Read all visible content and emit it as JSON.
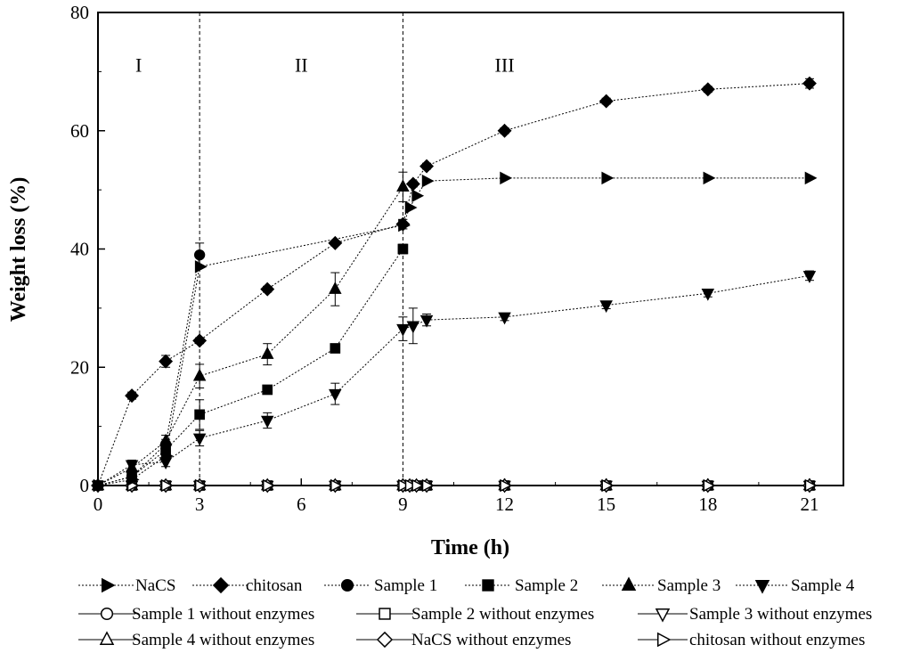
{
  "chart_data": {
    "type": "line",
    "title": "",
    "xlabel": "Time (h)",
    "ylabel": "Weight loss (%)",
    "xlim": [
      0,
      22
    ],
    "ylim": [
      0,
      80
    ],
    "xticks": [
      0,
      3,
      6,
      9,
      12,
      15,
      18,
      21
    ],
    "yticks": [
      0,
      20,
      40,
      60,
      80
    ],
    "grid": false,
    "legend_position": "bottom",
    "vlines": [
      3,
      9
    ],
    "regions": [
      {
        "label": "I",
        "x": 1.2,
        "y": 70
      },
      {
        "label": "II",
        "x": 6,
        "y": 70
      },
      {
        "label": "III",
        "x": 12,
        "y": 70
      }
    ],
    "series": [
      {
        "name": "NaCS",
        "marker": "triangle-right",
        "filled": true,
        "line": "dotted",
        "x": [
          0,
          1,
          2,
          3,
          9,
          9.2,
          9.4,
          9.7,
          12,
          15,
          18,
          21
        ],
        "y": [
          0,
          1.0,
          5.0,
          37.0,
          44.0,
          47.0,
          49.0,
          51.5,
          52.0,
          52.0,
          52.0,
          52.0
        ],
        "err": [
          0,
          0,
          0,
          0,
          0,
          0,
          0,
          0,
          0,
          0,
          0,
          0
        ]
      },
      {
        "name": "chitosan",
        "marker": "diamond",
        "filled": true,
        "line": "dotted",
        "x": [
          0,
          1,
          2,
          3,
          5,
          7,
          9,
          9.3,
          9.7,
          12,
          15,
          18,
          21
        ],
        "y": [
          0,
          15.2,
          21.0,
          24.5,
          33.2,
          41.0,
          44.2,
          51.0,
          54.0,
          60.0,
          65.0,
          67.0,
          68.0
        ],
        "err": [
          0,
          0.6,
          1.0,
          0.5,
          0.5,
          0.4,
          0.8,
          0.5,
          0.5,
          0.5,
          0.5,
          0.5,
          0.8
        ]
      },
      {
        "name": "Sample 1",
        "marker": "circle",
        "filled": true,
        "line": "dotted",
        "x": [
          0,
          1,
          2,
          3
        ],
        "y": [
          0,
          1.5,
          7.0,
          39.0
        ],
        "err": [
          0,
          0.6,
          0.8,
          2.0
        ]
      },
      {
        "name": "Sample 2",
        "marker": "square",
        "filled": true,
        "line": "dotted",
        "x": [
          0,
          1,
          2,
          3,
          5,
          7,
          9
        ],
        "y": [
          0,
          1.5,
          6.0,
          12.0,
          16.2,
          23.2,
          40.0
        ],
        "err": [
          0,
          0.5,
          1.0,
          2.5,
          0.6,
          0.5,
          0.8
        ]
      },
      {
        "name": "Sample 3",
        "marker": "triangle-up",
        "filled": true,
        "line": "dotted",
        "x": [
          0,
          1,
          2,
          3,
          5,
          7,
          9
        ],
        "y": [
          0,
          3.0,
          7.5,
          18.5,
          22.2,
          33.2,
          50.5
        ],
        "err": [
          0,
          1.0,
          1.0,
          2.0,
          1.8,
          2.8,
          2.5
        ]
      },
      {
        "name": "Sample 4",
        "marker": "triangle-down",
        "filled": true,
        "line": "dotted",
        "x": [
          0,
          1,
          2,
          3,
          5,
          7,
          9,
          9.3,
          9.7,
          12,
          15,
          18,
          21
        ],
        "y": [
          0,
          3.5,
          4.0,
          8.0,
          11.0,
          15.5,
          26.5,
          27.0,
          28.0,
          28.5,
          30.5,
          32.5,
          35.5
        ],
        "err": [
          0,
          0.8,
          0.8,
          1.3,
          1.3,
          1.8,
          2.0,
          3.0,
          1.0,
          0.6,
          0.6,
          0.6,
          0.8
        ]
      },
      {
        "name": "Sample 1 without enzymes",
        "marker": "circle",
        "filled": false,
        "line": "solid",
        "x": [
          0,
          1,
          2,
          3,
          5,
          7,
          9,
          9.2,
          9.4,
          9.7,
          12,
          15,
          18,
          21
        ],
        "y": [
          0,
          0,
          0,
          0,
          0,
          0,
          0,
          0,
          0,
          0,
          0,
          0,
          0,
          0
        ],
        "err": []
      },
      {
        "name": "Sample 2 without enzymes",
        "marker": "square",
        "filled": false,
        "line": "solid",
        "x": [
          0,
          1,
          2,
          3,
          5,
          7,
          9,
          9.2,
          9.4,
          9.7,
          12,
          15,
          18,
          21
        ],
        "y": [
          0,
          0,
          0,
          0,
          0,
          0,
          0,
          0,
          0,
          0,
          0,
          0,
          0,
          0
        ],
        "err": []
      },
      {
        "name": "Sample 3 without enzymes",
        "marker": "triangle-down",
        "filled": false,
        "line": "solid",
        "x": [
          0,
          1,
          2,
          3,
          5,
          7,
          9,
          9.2,
          9.4,
          9.7,
          12,
          15,
          18,
          21
        ],
        "y": [
          0,
          0,
          0,
          0,
          0,
          0,
          0,
          0,
          0,
          0,
          0,
          0,
          0,
          0
        ],
        "err": []
      },
      {
        "name": "Sample 4 without enzymes",
        "marker": "triangle-up",
        "filled": false,
        "line": "solid",
        "x": [
          0,
          1,
          2,
          3,
          5,
          7,
          9,
          9.2,
          9.4,
          9.7,
          12,
          15,
          18,
          21
        ],
        "y": [
          0,
          0,
          0,
          0,
          0,
          0,
          0,
          0,
          0,
          0,
          0,
          0,
          0,
          0
        ],
        "err": []
      },
      {
        "name": "NaCS without enzymes",
        "marker": "diamond",
        "filled": false,
        "line": "solid",
        "x": [
          0,
          1,
          2,
          3,
          5,
          7,
          9,
          9.2,
          9.4,
          9.7,
          12,
          15,
          18,
          21
        ],
        "y": [
          0,
          0,
          0,
          0,
          0,
          0,
          0,
          0,
          0,
          0,
          0,
          0,
          0,
          0
        ],
        "err": []
      },
      {
        "name": "chitosan without enzymes",
        "marker": "triangle-right",
        "filled": false,
        "line": "solid",
        "x": [
          0,
          1,
          2,
          3,
          5,
          7,
          9,
          9.2,
          9.4,
          9.7,
          12,
          15,
          18,
          21
        ],
        "y": [
          0,
          0,
          0,
          0,
          0,
          0,
          0,
          0,
          0,
          0,
          0,
          0,
          0,
          0
        ],
        "err": []
      }
    ]
  }
}
